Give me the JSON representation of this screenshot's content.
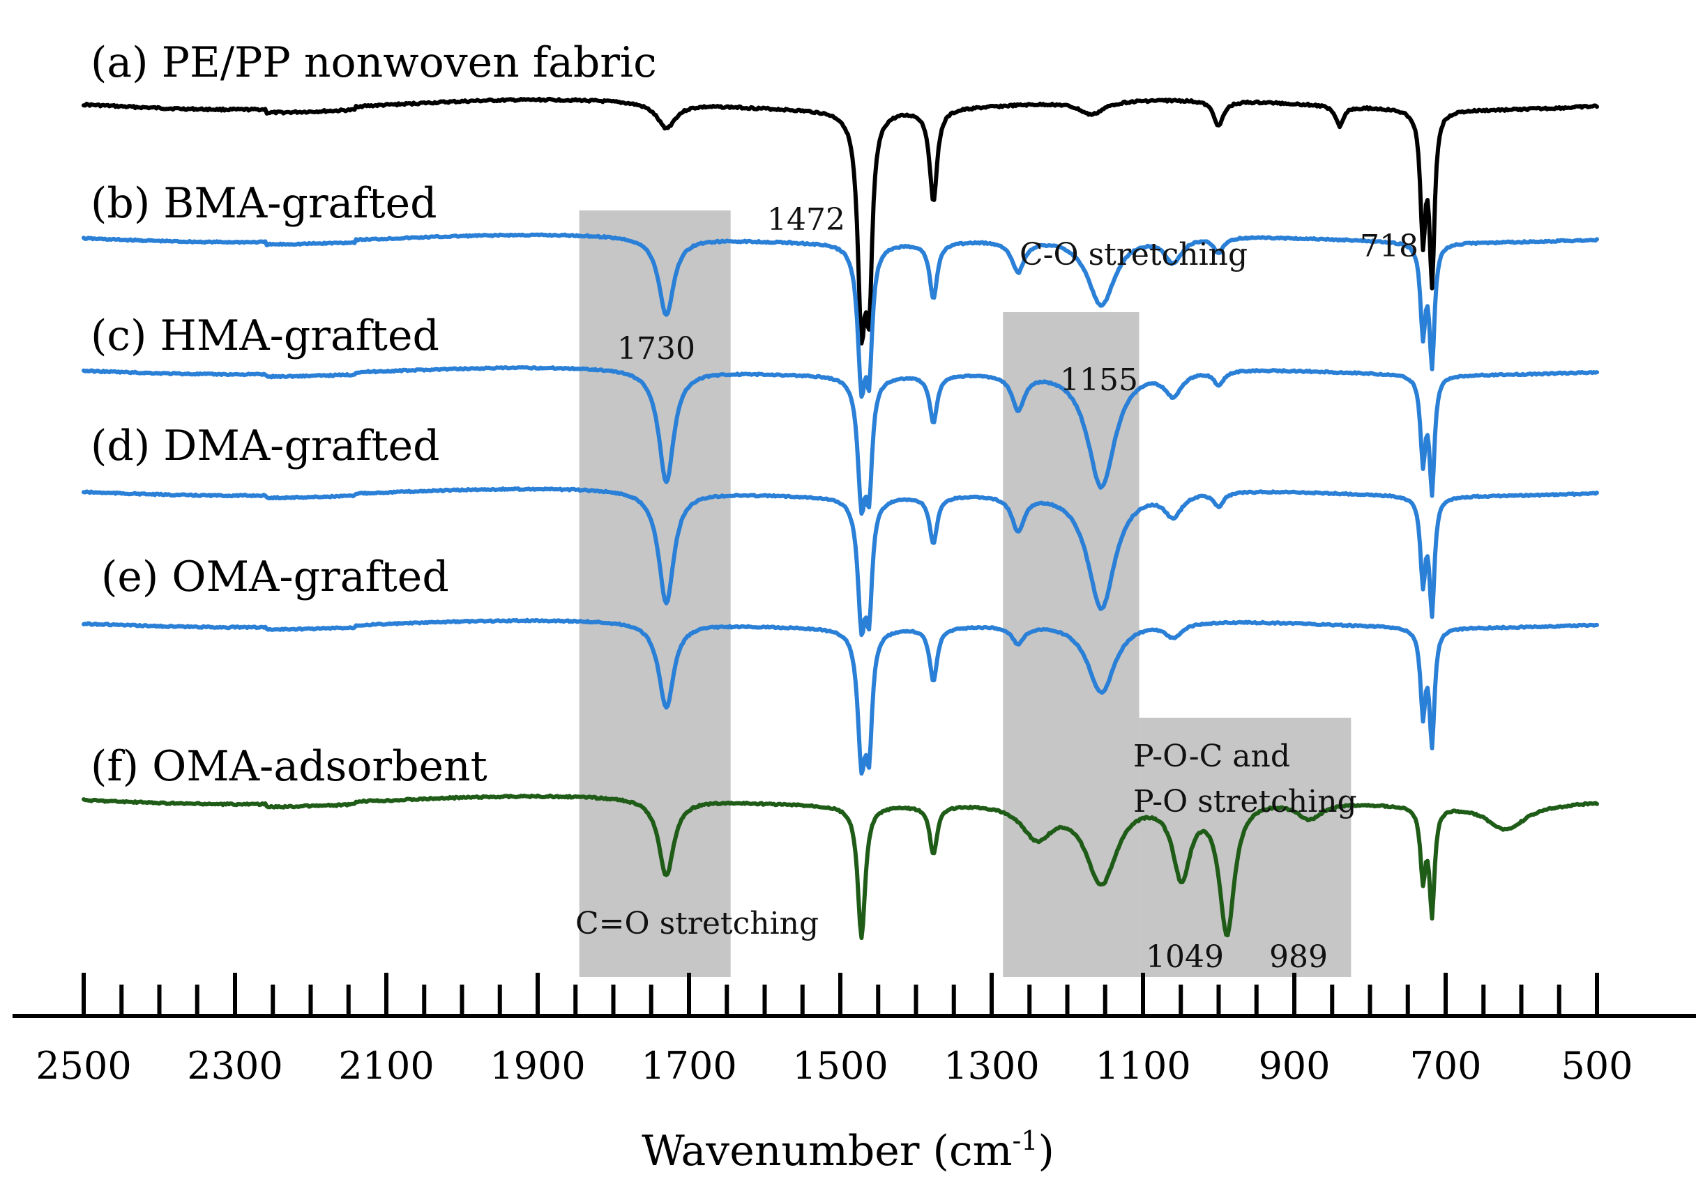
{
  "colors": {
    "pe_pp": "#000000",
    "grafted": "#2a7fd6",
    "adsorbent": "#1f5c17",
    "band": "#c6c6c6",
    "axis": "#000000"
  },
  "chart_data": {
    "type": "line",
    "title": "",
    "xlabel_main": "Wavenumber (cm",
    "xlabel_sup": "-1",
    "xlabel_close": ")",
    "ylabel": "",
    "x_reversed": true,
    "xlim": [
      2540,
      440
    ],
    "x_ticks_major": [
      2500,
      2300,
      2100,
      1900,
      1700,
      1500,
      1300,
      1100,
      900,
      700,
      500
    ],
    "x_ticks_minor_step": 50,
    "shaded_regions": [
      {
        "name": "c-o-stretch-region",
        "x_from": 1845,
        "x_to": 1645
      },
      {
        "name": "c-o-single-region",
        "x_from": 1285,
        "x_to": 1105
      },
      {
        "name": "p-o-region",
        "x_from": 1105,
        "x_to": 825
      }
    ],
    "series": [
      {
        "name": "pe-pp",
        "label": "(a) PE/PP nonwoven fabric",
        "color": "#000000",
        "baseline": 0.0,
        "peaks": [
          [
            1730,
            0.15,
            15
          ],
          [
            1472,
            1.2,
            6
          ],
          [
            1462,
            1.0,
            5
          ],
          [
            1377,
            0.55,
            6
          ],
          [
            1168,
            0.08,
            20
          ],
          [
            1000,
            0.15,
            8
          ],
          [
            840,
            0.12,
            6
          ],
          [
            730,
            0.75,
            4
          ],
          [
            718,
            1.0,
            4
          ]
        ]
      },
      {
        "name": "bma-grafted",
        "label": "(b) BMA-grafted",
        "color": "#2a7fd6",
        "baseline": 0.0,
        "peaks": [
          [
            1730,
            0.62,
            12
          ],
          [
            1472,
            1.05,
            6
          ],
          [
            1462,
            0.9,
            5
          ],
          [
            1377,
            0.45,
            6
          ],
          [
            1265,
            0.25,
            10
          ],
          [
            1155,
            0.55,
            22
          ],
          [
            1060,
            0.2,
            14
          ],
          [
            1000,
            0.12,
            8
          ],
          [
            730,
            0.7,
            4
          ],
          [
            718,
            0.95,
            4
          ]
        ]
      },
      {
        "name": "hma-grafted",
        "label": "(c) HMA-grafted",
        "color": "#2a7fd6",
        "baseline": 0.0,
        "peaks": [
          [
            1730,
            0.95,
            12
          ],
          [
            1472,
            1.0,
            6
          ],
          [
            1462,
            0.85,
            5
          ],
          [
            1377,
            0.4,
            6
          ],
          [
            1265,
            0.3,
            10
          ],
          [
            1155,
            1.0,
            22
          ],
          [
            1060,
            0.2,
            14
          ],
          [
            1000,
            0.12,
            8
          ],
          [
            730,
            0.7,
            4
          ],
          [
            718,
            0.95,
            4
          ]
        ]
      },
      {
        "name": "dma-grafted",
        "label": "(d) DMA-grafted",
        "color": "#2a7fd6",
        "baseline": 0.0,
        "peaks": [
          [
            1730,
            0.95,
            12
          ],
          [
            1472,
            1.0,
            6
          ],
          [
            1462,
            0.85,
            5
          ],
          [
            1377,
            0.4,
            6
          ],
          [
            1265,
            0.3,
            10
          ],
          [
            1155,
            1.0,
            22
          ],
          [
            1060,
            0.2,
            14
          ],
          [
            1000,
            0.12,
            8
          ],
          [
            730,
            0.7,
            4
          ],
          [
            718,
            0.95,
            4
          ]
        ]
      },
      {
        "name": "oma-grafted",
        "label": "(e) OMA-grafted",
        "color": "#2a7fd6",
        "baseline": 0.0,
        "peaks": [
          [
            1730,
            0.72,
            12
          ],
          [
            1472,
            1.05,
            6
          ],
          [
            1462,
            0.9,
            5
          ],
          [
            1377,
            0.45,
            6
          ],
          [
            1265,
            0.15,
            10
          ],
          [
            1155,
            0.6,
            22
          ],
          [
            1060,
            0.12,
            14
          ],
          [
            730,
            0.7,
            4
          ],
          [
            718,
            0.95,
            4
          ]
        ]
      },
      {
        "name": "oma-adsorbent",
        "label": "(f) OMA-adsorbent",
        "color": "#1f5c17",
        "baseline": 0.0,
        "peaks": [
          [
            1730,
            0.55,
            12
          ],
          [
            1472,
            0.95,
            6
          ],
          [
            1377,
            0.35,
            6
          ],
          [
            1240,
            0.25,
            25
          ],
          [
            1155,
            0.6,
            25
          ],
          [
            1049,
            0.55,
            14
          ],
          [
            989,
            0.95,
            12
          ],
          [
            880,
            0.12,
            20
          ],
          [
            730,
            0.5,
            4
          ],
          [
            718,
            0.75,
            4
          ],
          [
            620,
            0.18,
            30
          ]
        ]
      }
    ],
    "annotations": [
      {
        "name": "label-1472",
        "text": "1472",
        "x": 1472
      },
      {
        "name": "label-718",
        "text": "718",
        "x": 718
      },
      {
        "name": "label-1730",
        "text": "1730",
        "x": 1730
      },
      {
        "name": "label-1155",
        "text": "1155",
        "x": 1155
      },
      {
        "name": "label-c-o-stretching",
        "text": "C-O stretching",
        "x": 1190
      },
      {
        "name": "label-c-o-double-stretching",
        "text": "C=O stretching",
        "x": 1730
      },
      {
        "name": "label-poc-line1",
        "text": "P-O-C and",
        "x": 1050
      },
      {
        "name": "label-poc-line2",
        "text": "P-O stretching",
        "x": 1050
      },
      {
        "name": "label-1049",
        "text": "1049",
        "x": 1049
      },
      {
        "name": "label-989",
        "text": "989",
        "x": 930
      }
    ]
  }
}
